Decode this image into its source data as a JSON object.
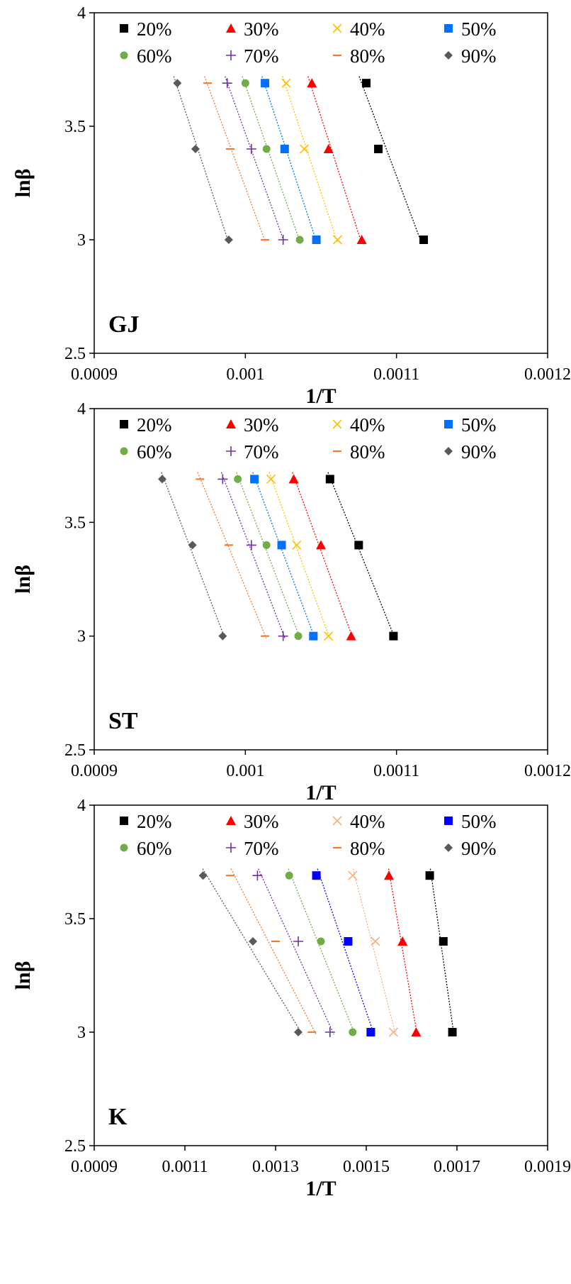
{
  "chart_data": [
    {
      "type": "scatter",
      "panel_label": "GJ",
      "xlabel": "1/T",
      "ylabel": "lnβ",
      "xlim": [
        0.0009,
        0.0012
      ],
      "ylim": [
        2.5,
        4
      ],
      "xticks": [
        0.0009,
        0.001,
        0.0011,
        0.0012
      ],
      "xtick_labels": [
        "0.0009",
        "0.001",
        "0.0011",
        "0.0012"
      ],
      "yticks": [
        2.5,
        3,
        3.5,
        4
      ],
      "ytick_labels": [
        "2.5",
        "3",
        "3.5",
        "4"
      ],
      "grid": false,
      "legend_position": "top",
      "series": [
        {
          "name": "20%",
          "marker": "square",
          "color": "#000000",
          "x": [
            0.00108,
            0.001088,
            0.001118
          ],
          "y": [
            3.69,
            3.4,
            3.0
          ]
        },
        {
          "name": "30%",
          "marker": "triangle",
          "color": "#ff0000",
          "x": [
            0.001044,
            0.001055,
            0.001077
          ],
          "y": [
            3.69,
            3.4,
            3.0
          ]
        },
        {
          "name": "40%",
          "marker": "x",
          "color": "#ffc000",
          "x": [
            0.001027,
            0.001039,
            0.001061
          ],
          "y": [
            3.69,
            3.4,
            3.0
          ]
        },
        {
          "name": "50%",
          "marker": "square",
          "color": "#0070ff",
          "x": [
            0.001013,
            0.001026,
            0.001047
          ],
          "y": [
            3.69,
            3.4,
            3.0
          ]
        },
        {
          "name": "60%",
          "marker": "circle",
          "color": "#70ad47",
          "x": [
            0.001,
            0.001014,
            0.001036
          ],
          "y": [
            3.69,
            3.4,
            3.0
          ]
        },
        {
          "name": "70%",
          "marker": "plus",
          "color": "#7030a0",
          "x": [
            0.000988,
            0.001004,
            0.001025
          ],
          "y": [
            3.69,
            3.4,
            3.0
          ]
        },
        {
          "name": "80%",
          "marker": "dash",
          "color": "#ed7d31",
          "x": [
            0.000975,
            0.00099,
            0.001013
          ],
          "y": [
            3.69,
            3.4,
            3.0
          ]
        },
        {
          "name": "90%",
          "marker": "diamond",
          "color": "#595959",
          "x": [
            0.000955,
            0.000967,
            0.000989
          ],
          "y": [
            3.69,
            3.4,
            3.0
          ]
        }
      ]
    },
    {
      "type": "scatter",
      "panel_label": "ST",
      "xlabel": "1/T",
      "ylabel": "lnβ",
      "xlim": [
        0.0009,
        0.0012
      ],
      "ylim": [
        2.5,
        4
      ],
      "xticks": [
        0.0009,
        0.001,
        0.0011,
        0.0012
      ],
      "xtick_labels": [
        "0.0009",
        "0.001",
        "0.0011",
        "0.0012"
      ],
      "yticks": [
        2.5,
        3,
        3.5,
        4
      ],
      "ytick_labels": [
        "2.5",
        "3",
        "3.5",
        "4"
      ],
      "grid": false,
      "legend_position": "top",
      "series": [
        {
          "name": "20%",
          "marker": "square",
          "color": "#000000",
          "x": [
            0.001056,
            0.001075,
            0.001098
          ],
          "y": [
            3.69,
            3.4,
            3.0
          ]
        },
        {
          "name": "30%",
          "marker": "triangle",
          "color": "#ff0000",
          "x": [
            0.001032,
            0.00105,
            0.00107
          ],
          "y": [
            3.69,
            3.4,
            3.0
          ]
        },
        {
          "name": "40%",
          "marker": "x",
          "color": "#ffc000",
          "x": [
            0.001017,
            0.001034,
            0.001055
          ],
          "y": [
            3.69,
            3.4,
            3.0
          ]
        },
        {
          "name": "50%",
          "marker": "square",
          "color": "#0070ff",
          "x": [
            0.001006,
            0.001024,
            0.001045
          ],
          "y": [
            3.69,
            3.4,
            3.0
          ]
        },
        {
          "name": "60%",
          "marker": "circle",
          "color": "#70ad47",
          "x": [
            0.000995,
            0.001014,
            0.001035
          ],
          "y": [
            3.69,
            3.4,
            3.0
          ]
        },
        {
          "name": "70%",
          "marker": "plus",
          "color": "#7030a0",
          "x": [
            0.000985,
            0.001004,
            0.001025
          ],
          "y": [
            3.69,
            3.4,
            3.0
          ]
        },
        {
          "name": "80%",
          "marker": "dash",
          "color": "#ed7d31",
          "x": [
            0.00097,
            0.000989,
            0.001013
          ],
          "y": [
            3.69,
            3.4,
            3.0
          ]
        },
        {
          "name": "90%",
          "marker": "diamond",
          "color": "#595959",
          "x": [
            0.000945,
            0.000965,
            0.000985
          ],
          "y": [
            3.69,
            3.4,
            3.0
          ]
        }
      ]
    },
    {
      "type": "scatter",
      "panel_label": "K",
      "xlabel": "1/T",
      "ylabel": "lnβ",
      "xlim": [
        0.0009,
        0.0019
      ],
      "ylim": [
        2.5,
        4
      ],
      "xticks": [
        0.0009,
        0.0011,
        0.0013,
        0.0015,
        0.0017,
        0.0019
      ],
      "xtick_labels": [
        "0.0009",
        "0.0011",
        "0.0013",
        "0.0015",
        "0.0017",
        "0.0019"
      ],
      "yticks": [
        2.5,
        3,
        3.5,
        4
      ],
      "ytick_labels": [
        "2.5",
        "3",
        "3.5",
        "4"
      ],
      "grid": false,
      "legend_position": "top",
      "series": [
        {
          "name": "20%",
          "marker": "square",
          "color": "#000000",
          "x": [
            0.00164,
            0.00167,
            0.00169
          ],
          "y": [
            3.69,
            3.4,
            3.0
          ]
        },
        {
          "name": "30%",
          "marker": "triangle",
          "color": "#ff0000",
          "x": [
            0.00155,
            0.00158,
            0.00161
          ],
          "y": [
            3.69,
            3.4,
            3.0
          ]
        },
        {
          "name": "40%",
          "marker": "x",
          "color": "#f4b183",
          "x": [
            0.00147,
            0.00152,
            0.00156
          ],
          "y": [
            3.69,
            3.4,
            3.0
          ]
        },
        {
          "name": "50%",
          "marker": "square",
          "color": "#0000ff",
          "x": [
            0.00139,
            0.00146,
            0.00151
          ],
          "y": [
            3.69,
            3.4,
            3.0
          ]
        },
        {
          "name": "60%",
          "marker": "circle",
          "color": "#70ad47",
          "x": [
            0.00133,
            0.0014,
            0.00147
          ],
          "y": [
            3.69,
            3.4,
            3.0
          ]
        },
        {
          "name": "70%",
          "marker": "plus",
          "color": "#7030a0",
          "x": [
            0.00126,
            0.00135,
            0.00142
          ],
          "y": [
            3.69,
            3.4,
            3.0
          ]
        },
        {
          "name": "80%",
          "marker": "dash",
          "color": "#ed7d31",
          "x": [
            0.0012,
            0.0013,
            0.00138
          ],
          "y": [
            3.69,
            3.4,
            3.0
          ]
        },
        {
          "name": "90%",
          "marker": "diamond",
          "color": "#595959",
          "x": [
            0.00114,
            0.00125,
            0.00135
          ],
          "y": [
            3.69,
            3.4,
            3.0
          ]
        }
      ]
    }
  ]
}
